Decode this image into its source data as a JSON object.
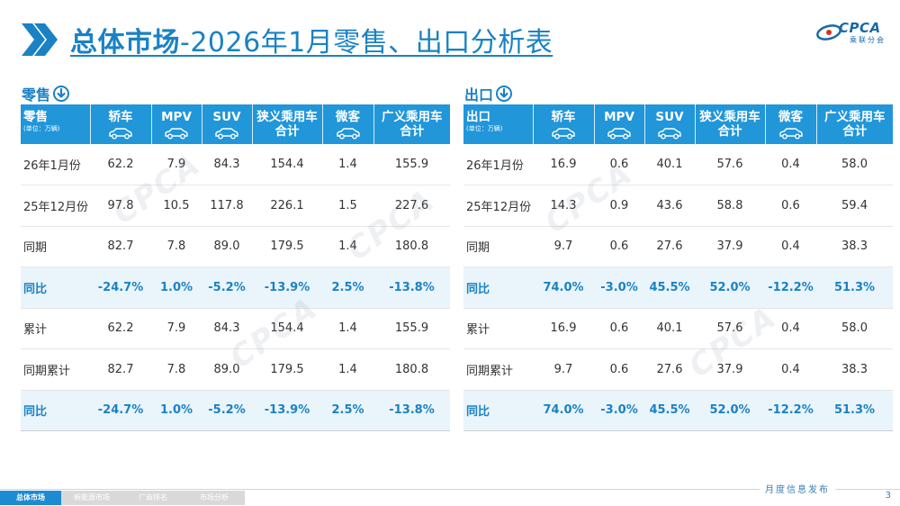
{
  "title": {
    "bold": "总体市场",
    "rest": "-2026年1月零售、出口分析表"
  },
  "logo": {
    "text": "CPCA",
    "sub": "乘联分会"
  },
  "watermark": "CPCA",
  "retail": {
    "heading": "零售",
    "corner_title": "零售",
    "corner_unit": "(单位：万辆)",
    "columns": [
      "轿车",
      "MPV",
      "SUV",
      "狭义乘用车合计",
      "微客",
      "广义乘用车合计"
    ],
    "rows": [
      {
        "label": "26年1月份",
        "values": [
          "62.2",
          "7.9",
          "84.3",
          "154.4",
          "1.4",
          "155.9"
        ],
        "highlight": false
      },
      {
        "label": "25年12月份",
        "values": [
          "97.8",
          "10.5",
          "117.8",
          "226.1",
          "1.5",
          "227.6"
        ],
        "highlight": false
      },
      {
        "label": "同期",
        "values": [
          "82.7",
          "7.8",
          "89.0",
          "179.5",
          "1.4",
          "180.8"
        ],
        "highlight": false
      },
      {
        "label": "同比",
        "values": [
          "-24.7%",
          "1.0%",
          "-5.2%",
          "-13.9%",
          "2.5%",
          "-13.8%"
        ],
        "highlight": true
      },
      {
        "label": "累计",
        "values": [
          "62.2",
          "7.9",
          "84.3",
          "154.4",
          "1.4",
          "155.9"
        ],
        "highlight": false
      },
      {
        "label": "同期累计",
        "values": [
          "82.7",
          "7.8",
          "89.0",
          "179.5",
          "1.4",
          "180.8"
        ],
        "highlight": false
      },
      {
        "label": "同比",
        "values": [
          "-24.7%",
          "1.0%",
          "-5.2%",
          "-13.9%",
          "2.5%",
          "-13.8%"
        ],
        "highlight": true
      }
    ]
  },
  "export": {
    "heading": "出口",
    "corner_title": "出口",
    "corner_unit": "(单位：万辆)",
    "columns": [
      "轿车",
      "MPV",
      "SUV",
      "狭义乘用车合计",
      "微客",
      "广义乘用车合计"
    ],
    "rows": [
      {
        "label": "26年1月份",
        "values": [
          "16.9",
          "0.6",
          "40.1",
          "57.6",
          "0.4",
          "58.0"
        ],
        "highlight": false
      },
      {
        "label": "25年12月份",
        "values": [
          "14.3",
          "0.9",
          "43.6",
          "58.8",
          "0.6",
          "59.4"
        ],
        "highlight": false
      },
      {
        "label": "同期",
        "values": [
          "9.7",
          "0.6",
          "27.6",
          "37.9",
          "0.4",
          "38.3"
        ],
        "highlight": false
      },
      {
        "label": "同比",
        "values": [
          "74.0%",
          "-3.0%",
          "45.5%",
          "52.0%",
          "-12.2%",
          "51.3%"
        ],
        "highlight": true
      },
      {
        "label": "累计",
        "values": [
          "16.9",
          "0.6",
          "40.1",
          "57.6",
          "0.4",
          "58.0"
        ],
        "highlight": false
      },
      {
        "label": "同期累计",
        "values": [
          "9.7",
          "0.6",
          "27.6",
          "37.9",
          "0.4",
          "38.3"
        ],
        "highlight": false
      },
      {
        "label": "同比",
        "values": [
          "74.0%",
          "-3.0%",
          "45.5%",
          "52.0%",
          "-12.2%",
          "51.3%"
        ],
        "highlight": true
      }
    ]
  },
  "footer": {
    "tabs": [
      {
        "label": "总体市场",
        "active": true
      },
      {
        "label": "新能源市场",
        "active": false
      },
      {
        "label": "厂商排名",
        "active": false
      },
      {
        "label": "市场分析",
        "active": false
      }
    ],
    "caption": "月度信息发布",
    "page": "3"
  },
  "colors": {
    "accent": "#1a82c4",
    "header_bg": "#2196d9",
    "highlight_bg": "#eaf4fb"
  }
}
